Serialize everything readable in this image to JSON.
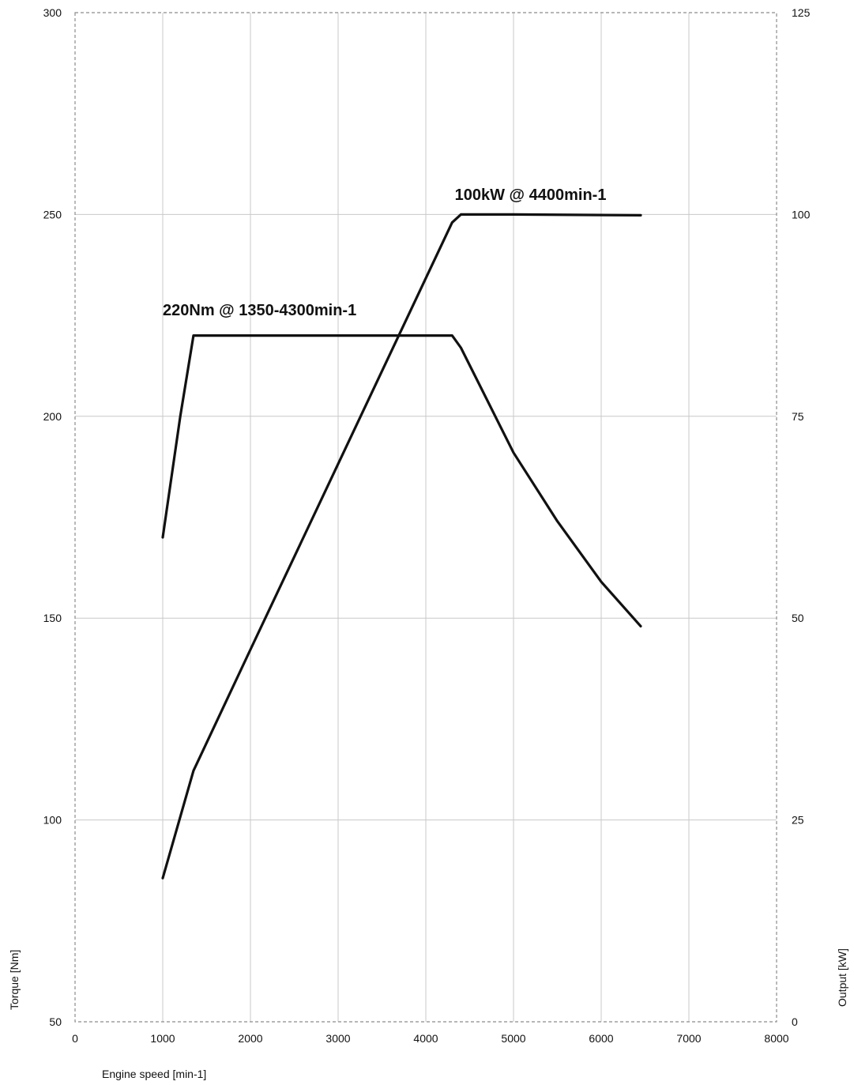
{
  "chart_data": {
    "type": "line",
    "xlabel": "Engine speed [min-1]",
    "ylabel_left": "Torque [Nm]",
    "ylabel_right": "Output [kW]",
    "xlim": [
      0,
      8000
    ],
    "ylim_left": [
      50,
      300
    ],
    "ylim_right": [
      0,
      125
    ],
    "x_ticks": [
      "0",
      "1000",
      "2000",
      "3000",
      "4000",
      "5000",
      "6000",
      "7000",
      "8000"
    ],
    "y_left_ticks": [
      "50",
      "100",
      "150",
      "200",
      "250",
      "300"
    ],
    "y_right_ticks": [
      "0",
      "25",
      "50",
      "75",
      "100",
      "125"
    ],
    "grid": true,
    "series": [
      {
        "axis": "left",
        "x": [
          1000,
          1200,
          1350,
          4300,
          4400,
          5000,
          5500,
          6000,
          6450
        ],
        "y": [
          170,
          200,
          220,
          220,
          217,
          191,
          174,
          159,
          148
        ]
      },
      {
        "axis": "right",
        "x": [
          1000,
          1350,
          2000,
          3000,
          4000,
          4300,
          4400,
          5000,
          6450
        ],
        "y": [
          17.8,
          31.1,
          46.1,
          69.1,
          92.1,
          99.0,
          100,
          100,
          99.9
        ]
      }
    ],
    "annotations": [
      {
        "text": "220Nm @ 1350-4300min-1",
        "x": 1000,
        "y": 225,
        "axis": "left"
      },
      {
        "text": "100kW @ 4400min-1",
        "x": 4330,
        "y": 101.8,
        "axis": "right"
      }
    ]
  }
}
